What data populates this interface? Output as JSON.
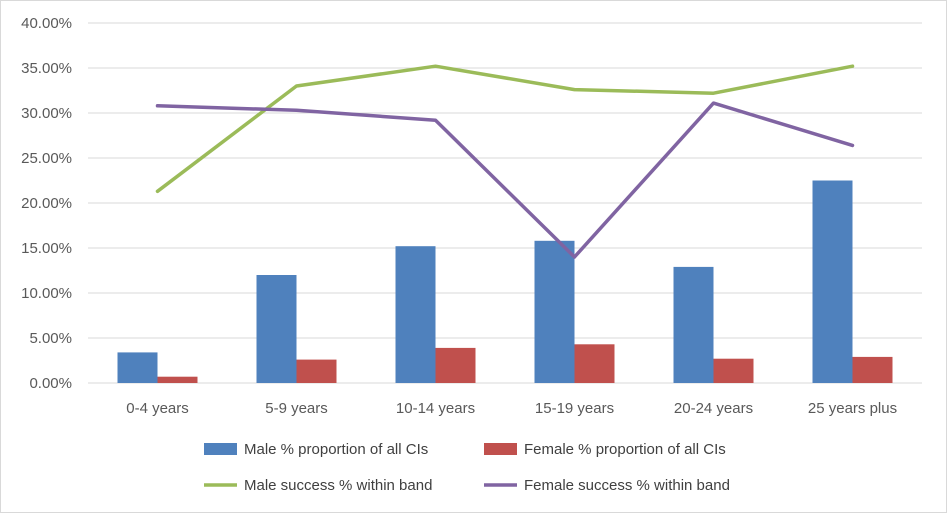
{
  "chart_data": {
    "type": "bar",
    "categories": [
      "0-4 years",
      "5-9 years",
      "10-14 years",
      "15-19 years",
      "20-24 years",
      "25 years plus"
    ],
    "ylim": [
      0,
      40
    ],
    "yticks": [
      0,
      5,
      10,
      15,
      20,
      25,
      30,
      35,
      40
    ],
    "ytick_labels": [
      "0.00%",
      "5.00%",
      "10.00%",
      "15.00%",
      "20.00%",
      "25.00%",
      "30.00%",
      "35.00%",
      "40.00%"
    ],
    "grid": true,
    "legend_position": "bottom",
    "series": [
      {
        "name": "Male % proportion of all CIs",
        "kind": "bar",
        "color": "#4F81BD",
        "values": [
          3.4,
          12.0,
          15.2,
          15.8,
          12.9,
          22.5
        ]
      },
      {
        "name": "Female % proportion of all CIs",
        "kind": "bar",
        "color": "#C0504D",
        "values": [
          0.7,
          2.6,
          3.9,
          4.3,
          2.7,
          2.9
        ]
      },
      {
        "name": "Male success % within band",
        "kind": "line",
        "color": "#9BBB59",
        "values": [
          21.3,
          33.0,
          35.2,
          32.6,
          32.2,
          35.2
        ]
      },
      {
        "name": "Female success % within band",
        "kind": "line",
        "color": "#8064A2",
        "values": [
          30.8,
          30.3,
          29.2,
          14.0,
          31.1,
          26.4
        ]
      }
    ]
  }
}
